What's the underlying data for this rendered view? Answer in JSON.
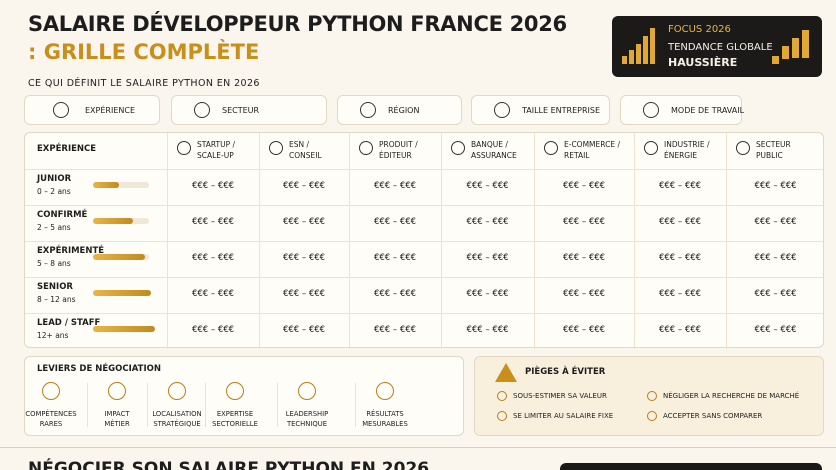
{
  "header": {
    "title_line1": "SALAIRE DÉVELOPPEUR PYTHON FRANCE 2026",
    "title_line2": ": GRILLE COMPLÈTE",
    "focus": {
      "label": "FOCUS 2026",
      "line1": "TENDANCE GLOBALE",
      "line2": "HAUSSIÈRE"
    }
  },
  "factors": {
    "title": "CE QUI DÉFINIT LE SALAIRE PYTHON EN 2026",
    "items": [
      "EXPÉRIENCE",
      "SECTEUR",
      "RÉGION",
      "TAILLE ENTREPRISE",
      "MODE DE TRAVAIL"
    ]
  },
  "table": {
    "corner": "EXPÉRIENCE",
    "columns": [
      [
        "STARTUP /",
        "SCALE-UP"
      ],
      [
        "ESN /",
        "CONSEIL"
      ],
      [
        "PRODUIT /",
        "ÉDITEUR"
      ],
      [
        "BANQUE /",
        "ASSURANCE"
      ],
      [
        "E-COMMERCE /",
        "RETAIL"
      ],
      [
        "INDUSTRIE /",
        "ÉNERGIE"
      ],
      [
        "SECTEUR",
        "PUBLIC"
      ]
    ],
    "rows": [
      {
        "level": "JUNIOR",
        "years": "0 – 2 ans",
        "cells": [
          "€€€ – €€€",
          "€€€ – €€€",
          "€€€ – €€€",
          "€€€ – €€€",
          "€€€ – €€€",
          "€€€ – €€€",
          "€€€ – €€€"
        ]
      },
      {
        "level": "CONFIRMÉ",
        "years": "2 – 5 ans",
        "cells": [
          "€€€ – €€€",
          "€€€ – €€€",
          "€€€ – €€€",
          "€€€ – €€€",
          "€€€ – €€€",
          "€€€ – €€€",
          "€€€ – €€€"
        ]
      },
      {
        "level": "EXPÉRIMENTÉ",
        "years": "5 – 8 ans",
        "cells": [
          "€€€ – €€€",
          "€€€ – €€€",
          "€€€ – €€€",
          "€€€ – €€€",
          "€€€ – €€€",
          "€€€ – €€€",
          "€€€ – €€€"
        ]
      },
      {
        "level": "SENIOR",
        "years": "8 – 12 ans",
        "cells": [
          "€€€ – €€€",
          "€€€ – €€€",
          "€€€ – €€€",
          "€€€ – €€€",
          "€€€ – €€€",
          "€€€ – €€€",
          "€€€ – €€€"
        ]
      },
      {
        "level": "LEAD / STAFF",
        "years": "12+ ans",
        "cells": [
          "€€€ – €€€",
          "€€€ – €€€",
          "€€€ – €€€",
          "€€€ – €€€",
          "€€€ – €€€",
          "€€€ – €€€",
          "€€€ – €€€"
        ]
      }
    ]
  },
  "levers": {
    "title": "LEVIERS DE NÉGOCIATION",
    "items": [
      [
        "COMPÉTENCES",
        "RARES"
      ],
      [
        "IMPACT",
        "MÉTIER"
      ],
      [
        "LOCALISATION",
        "STRATÉGIQUE"
      ],
      [
        "EXPERTISE",
        "SECTORIELLE"
      ],
      [
        "LEADERSHIP",
        "TECHNIQUE"
      ],
      [
        "RÉSULTATS",
        "MESURABLES"
      ]
    ]
  },
  "pitfalls": {
    "title": "PIÈGES À ÉVITER",
    "items": [
      "SOUS-ESTIMER SA VALEUR",
      "NÉGLIGER LA RECHERCHE DE MARCHÉ",
      "SE LIMITER AU SALAIRE FIXE",
      "ACCEPTER SANS COMPARER"
    ]
  },
  "footer": {
    "title": "NÉGOCIER SON SALAIRE PYTHON EN 2026"
  }
}
